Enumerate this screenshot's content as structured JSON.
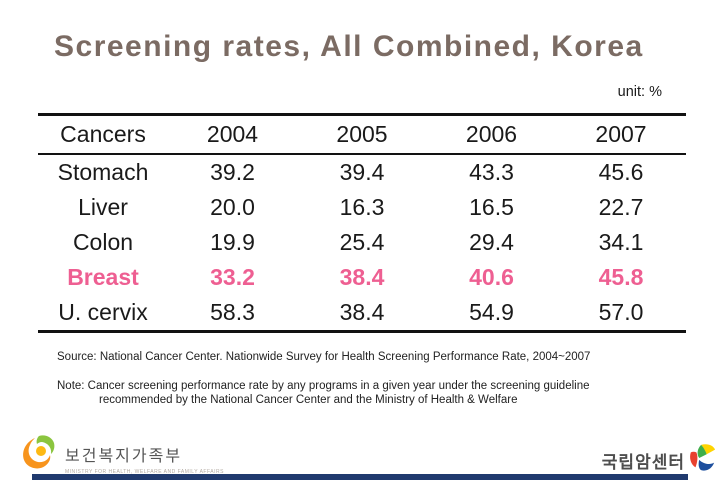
{
  "slide": {
    "title": "Screening rates, All Combined, Korea",
    "unit_label": "unit: %",
    "source": "Source: National Cancer Center. Nationwide Survey for Health Screening Performance Rate, 2004~2007",
    "note_line1": "Note: Cancer screening performance rate by any programs in a given year under the screening guideline",
    "note_line2": "recommended by the National Cancer Center and the Ministry of Health & Welfare"
  },
  "chart_data": {
    "type": "table",
    "title": "Screening rates, All Combined, Korea",
    "unit": "%",
    "columns": [
      "Cancers",
      "2004",
      "2005",
      "2006",
      "2007"
    ],
    "rows": [
      {
        "label": "Stomach",
        "values": [
          "39.2",
          "39.4",
          "43.3",
          "45.6"
        ],
        "highlight": false
      },
      {
        "label": "Liver",
        "values": [
          "20.0",
          "16.3",
          "16.5",
          "22.7"
        ],
        "highlight": false
      },
      {
        "label": "Colon",
        "values": [
          "19.9",
          "25.4",
          "29.4",
          "34.1"
        ],
        "highlight": false
      },
      {
        "label": "Breast",
        "values": [
          "33.2",
          "38.4",
          "40.6",
          "45.8"
        ],
        "highlight": true
      },
      {
        "label": "U. cervix",
        "values": [
          "58.3",
          "38.4",
          "54.9",
          "57.0"
        ],
        "highlight": false
      }
    ]
  },
  "footer": {
    "ministry_logo_text": "보건복지가족부",
    "ministry_logo_tagline": "MINISTRY FOR HEALTH, WELFARE AND FAMILY AFFAIRS",
    "ministry_icon": "swirl-emblem-icon",
    "ncc_logo_text": "국립암센터",
    "ncc_icon": "pinwheel-leaf-icon"
  },
  "colors": {
    "title_color": "#7b6b63",
    "highlight_color": "#ee5f92",
    "footer_bar_color": "#203a6e"
  }
}
